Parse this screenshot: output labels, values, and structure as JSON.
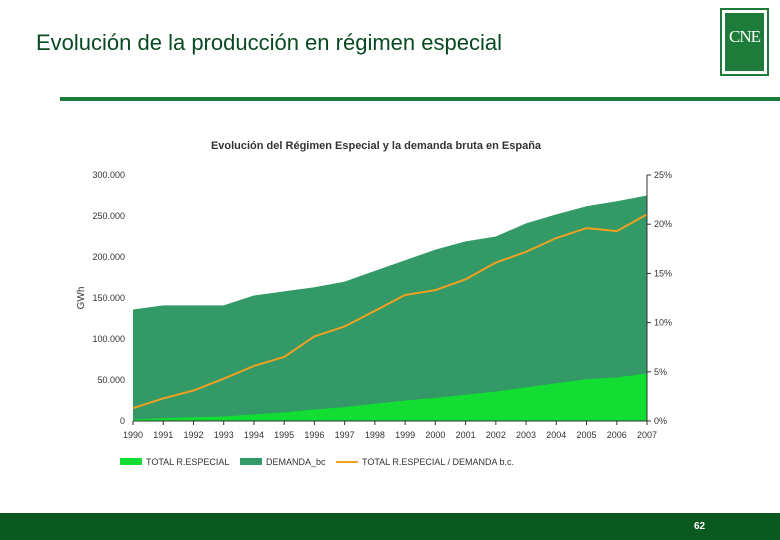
{
  "slide": {
    "title": "Evolución de la producción en régimen especial",
    "logo_text": "CNE",
    "page_number": "62"
  },
  "colors": {
    "brand_green": "#1e7c3b",
    "footer_green": "#0a5a20",
    "demanda": "#339966",
    "total_re": "#11dd33",
    "ratio_line": "#f0a020"
  },
  "chart_data": {
    "type": "area",
    "title": "Evolución del Régimen Especial y la demanda bruta en España",
    "ylabel": "GWh",
    "y_ticks": [
      "300.000",
      "250.000",
      "200.000",
      "150.000",
      "100.000",
      "50.000",
      "0"
    ],
    "y2_ticks": [
      "25%",
      "20%",
      "15%",
      "10%",
      "5%",
      "0%"
    ],
    "ylim": [
      0,
      300000
    ],
    "y2lim": [
      0,
      25
    ],
    "categories": [
      "1990",
      "1991",
      "1992",
      "1993",
      "1994",
      "1995",
      "1996",
      "1997",
      "1998",
      "1999",
      "2000",
      "2001",
      "2002",
      "2003",
      "2004",
      "2005",
      "2006",
      "2007"
    ],
    "series": [
      {
        "name": "TOTAL R.ESPECIAL",
        "kind": "area",
        "axis": "left",
        "values": [
          2000,
          3500,
          4500,
          5500,
          8000,
          10500,
          14000,
          17000,
          21000,
          25000,
          28000,
          32000,
          36000,
          41000,
          46000,
          51000,
          53000,
          58000
        ]
      },
      {
        "name": "DEMANDA_bc",
        "kind": "area",
        "axis": "left",
        "values": [
          136000,
          141000,
          141000,
          141000,
          153000,
          158000,
          163000,
          170000,
          183000,
          196000,
          209000,
          219000,
          225000,
          241000,
          252000,
          262000,
          268000,
          275000
        ]
      },
      {
        "name": "TOTAL R.ESPECIAL / DEMANDA b.c.",
        "kind": "line",
        "axis": "right",
        "values": [
          1.3,
          2.3,
          3.1,
          4.3,
          5.6,
          6.5,
          8.6,
          9.6,
          11.2,
          12.8,
          13.3,
          14.4,
          16.1,
          17.2,
          18.6,
          19.6,
          19.3,
          21.0
        ]
      }
    ],
    "legend": [
      "TOTAL R.ESPECIAL",
      "DEMANDA_bc",
      "TOTAL R.ESPECIAL / DEMANDA b.c."
    ],
    "legend_position": "bottom"
  }
}
